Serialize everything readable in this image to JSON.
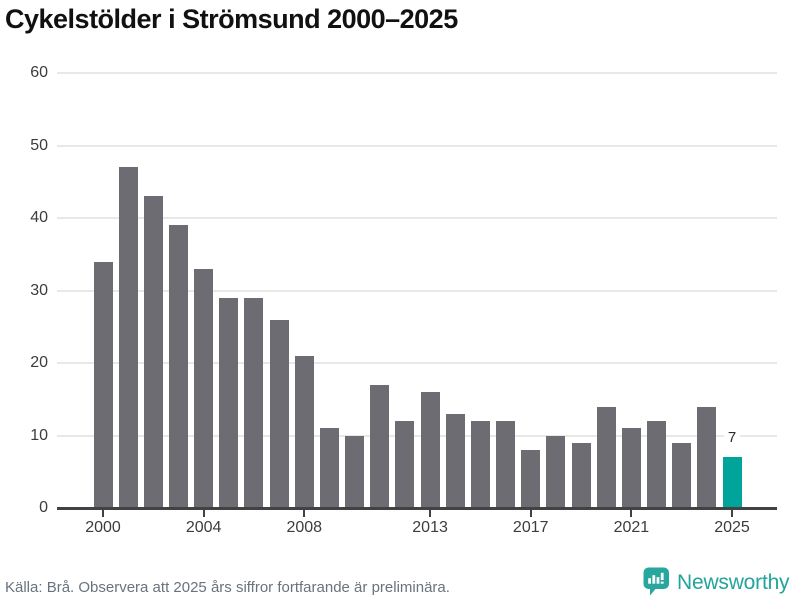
{
  "header": {
    "title": "Cykelstölder i Strömsund 2000–2025"
  },
  "chart_data": {
    "type": "bar",
    "title": "Cykelstölder i Strömsund 2000–2025",
    "x": [
      2000,
      2001,
      2002,
      2003,
      2004,
      2005,
      2006,
      2007,
      2008,
      2009,
      2010,
      2011,
      2012,
      2013,
      2014,
      2015,
      2016,
      2017,
      2018,
      2019,
      2020,
      2021,
      2022,
      2023,
      2024,
      2025
    ],
    "values": [
      34,
      47,
      43,
      39,
      33,
      29,
      29,
      26,
      21,
      11,
      10,
      17,
      12,
      16,
      13,
      12,
      12,
      8,
      10,
      9,
      14,
      11,
      12,
      9,
      14,
      7
    ],
    "xlabel": "",
    "ylabel": "",
    "ylim": [
      0,
      60
    ],
    "yticks": [
      0,
      10,
      20,
      30,
      40,
      50,
      60
    ],
    "xtick_labels": [
      "2000",
      "2004",
      "2008",
      "2013",
      "2017",
      "2021",
      "2025"
    ],
    "grid": true,
    "legend": "none",
    "highlight_year": 2025,
    "highlight_value_label": "7",
    "bar_color": "#6c6c72",
    "highlight_color": "#00a49b"
  },
  "footer": {
    "source": "Källa: Brå. Observera att 2025 års siffror fortfarande är preliminära.",
    "brand": "Newsworthy"
  },
  "colors": {
    "background": "#ffffff",
    "gridline": "#e8e8e8",
    "axis": "#424245",
    "axis_text": "#3c3c3c",
    "title_text": "#111111",
    "source_text": "#68737d",
    "brand_teal": "#21a49b"
  },
  "icons": {
    "brand_logo": "newsworthy-speech-bubble-bar-chart-icon"
  }
}
